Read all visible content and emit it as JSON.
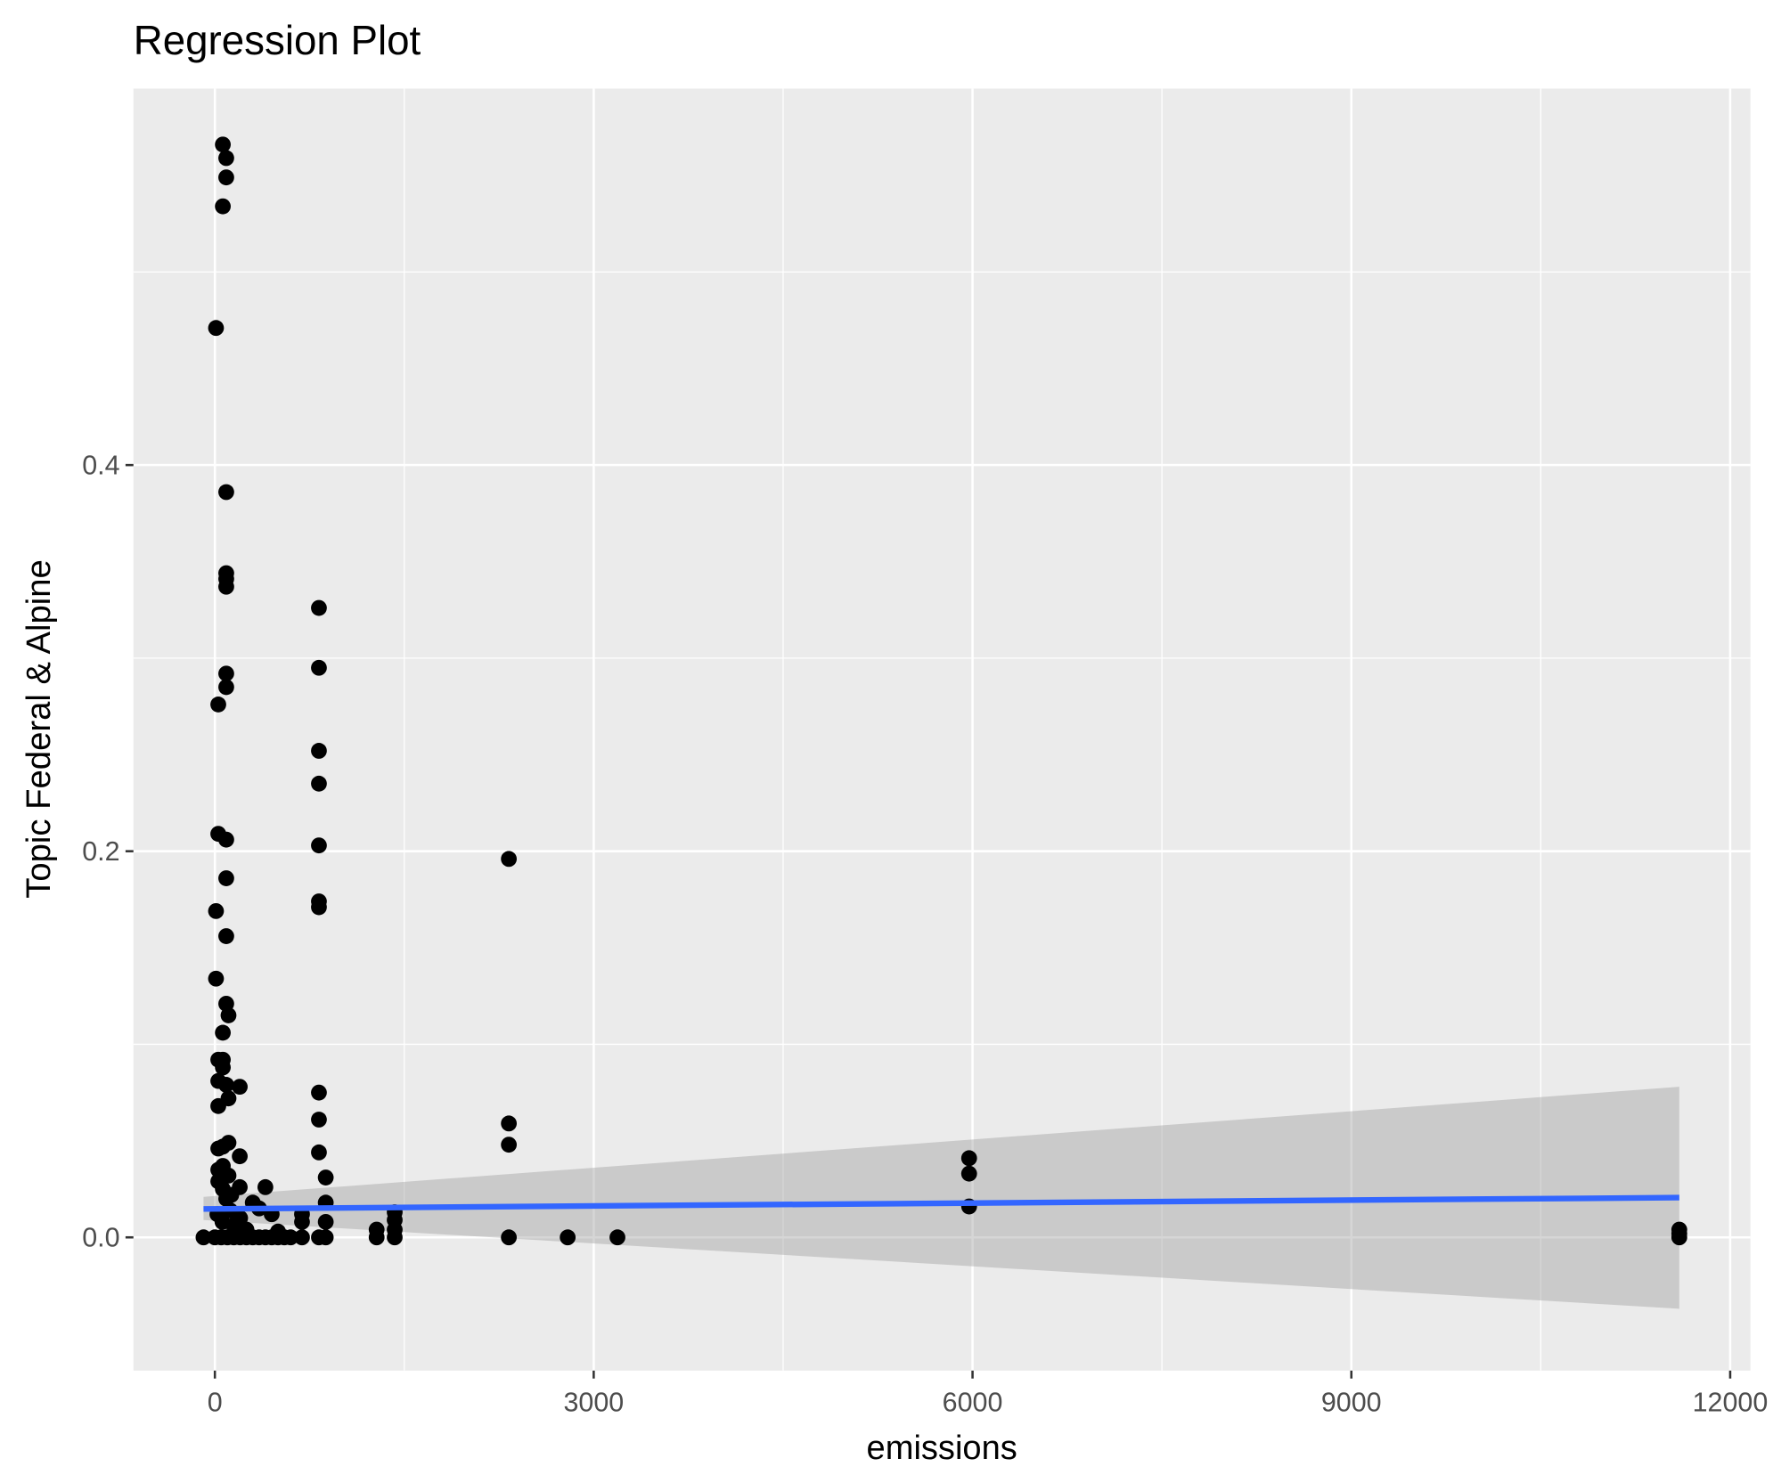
{
  "chart_data": {
    "type": "scatter",
    "title": "Regression Plot",
    "xlabel": "emissions",
    "ylabel": "Topic Federal & Alpine",
    "xlim": [
      -645,
      12160
    ],
    "ylim": [
      -0.069,
      0.595
    ],
    "xticks": [
      0,
      3000,
      6000,
      9000,
      12000
    ],
    "xtick_labels": [
      "0",
      "3000",
      "6000",
      "9000",
      "12000"
    ],
    "yticks": [
      0.0,
      0.2,
      0.4
    ],
    "ytick_labels": [
      "0.0",
      "0.2",
      "0.4"
    ],
    "grid": true,
    "colors": {
      "points": "#000000",
      "line": "#3366FF",
      "ribbon": "#999999",
      "panel": "#EBEBEB"
    },
    "points": [
      [
        63,
        0.566
      ],
      [
        90,
        0.559
      ],
      [
        90,
        0.549
      ],
      [
        63,
        0.534
      ],
      [
        9,
        0.471
      ],
      [
        90,
        0.386
      ],
      [
        90,
        0.344
      ],
      [
        90,
        0.341
      ],
      [
        90,
        0.337
      ],
      [
        90,
        0.292
      ],
      [
        90,
        0.285
      ],
      [
        27,
        0.276
      ],
      [
        27,
        0.209
      ],
      [
        90,
        0.206
      ],
      [
        90,
        0.186
      ],
      [
        9,
        0.169
      ],
      [
        90,
        0.156
      ],
      [
        9,
        0.134
      ],
      [
        90,
        0.121
      ],
      [
        108,
        0.115
      ],
      [
        63,
        0.106
      ],
      [
        27,
        0.092
      ],
      [
        63,
        0.092
      ],
      [
        63,
        0.088
      ],
      [
        27,
        0.081
      ],
      [
        90,
        0.079
      ],
      [
        197,
        0.078
      ],
      [
        108,
        0.072
      ],
      [
        27,
        0.068
      ],
      [
        108,
        0.049
      ],
      [
        27,
        0.046
      ],
      [
        63,
        0.047
      ],
      [
        197,
        0.042
      ],
      [
        63,
        0.037
      ],
      [
        27,
        0.035
      ],
      [
        108,
        0.032
      ],
      [
        27,
        0.029
      ],
      [
        63,
        0.025
      ],
      [
        130,
        0.022
      ],
      [
        197,
        0.026
      ],
      [
        400,
        0.026
      ],
      [
        90,
        0.02
      ],
      [
        300,
        0.018
      ],
      [
        350,
        0.015
      ],
      [
        450,
        0.012
      ],
      [
        200,
        0.01
      ],
      [
        150,
        0.006
      ],
      [
        250,
        0.004
      ],
      [
        500,
        0.003
      ],
      [
        -90,
        0
      ],
      [
        0,
        0
      ],
      [
        50,
        0
      ],
      [
        100,
        0
      ],
      [
        150,
        0
      ],
      [
        200,
        0
      ],
      [
        250,
        0
      ],
      [
        300,
        0
      ],
      [
        350,
        0
      ],
      [
        400,
        0
      ],
      [
        450,
        0
      ],
      [
        500,
        0
      ],
      [
        550,
        0
      ],
      [
        600,
        0
      ],
      [
        20,
        0.012
      ],
      [
        60,
        0.008
      ],
      [
        120,
        0.014
      ],
      [
        180,
        0.009
      ],
      [
        690,
        0.012
      ],
      [
        690,
        0.008
      ],
      [
        690,
        0
      ],
      [
        824,
        0.326
      ],
      [
        824,
        0.295
      ],
      [
        824,
        0.252
      ],
      [
        824,
        0.235
      ],
      [
        824,
        0.203
      ],
      [
        824,
        0.174
      ],
      [
        824,
        0.171
      ],
      [
        824,
        0.075
      ],
      [
        824,
        0.061
      ],
      [
        824,
        0.044
      ],
      [
        824,
        0
      ],
      [
        878,
        0.031
      ],
      [
        878,
        0.018
      ],
      [
        878,
        0.008
      ],
      [
        878,
        0
      ],
      [
        1281,
        0.004
      ],
      [
        1281,
        0
      ],
      [
        1424,
        0.013
      ],
      [
        1424,
        0.009
      ],
      [
        1424,
        0.004
      ],
      [
        1424,
        0
      ],
      [
        2328,
        0.196
      ],
      [
        2328,
        0.059
      ],
      [
        2328,
        0.048
      ],
      [
        2328,
        0
      ],
      [
        2794,
        0
      ],
      [
        3188,
        0
      ],
      [
        5973,
        0.041
      ],
      [
        5973,
        0.033
      ],
      [
        5973,
        0.016
      ],
      [
        11597,
        0.004
      ],
      [
        11597,
        0.002
      ],
      [
        11597,
        0
      ]
    ],
    "regression": {
      "x": [
        -90,
        11597
      ],
      "y": [
        0.0147,
        0.0206
      ],
      "ci_upper": [
        0.021,
        0.078
      ],
      "ci_lower": [
        0.009,
        -0.037
      ]
    }
  }
}
